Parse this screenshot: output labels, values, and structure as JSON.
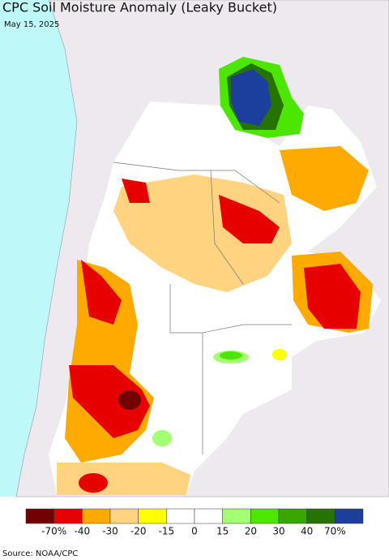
{
  "header": {
    "title": "CPC Soil Moisture Anomaly (Leaky Bucket)",
    "date": "May 15, 2025"
  },
  "legend": {
    "colors": [
      "#730000",
      "#e60000",
      "#ffaa00",
      "#ffd37f",
      "#ffff00",
      "#ffffff",
      "#ffffff",
      "#a3ff73",
      "#4ce600",
      "#38a800",
      "#267300",
      "#1c3f9e"
    ],
    "labels": [
      "-70%",
      "-40",
      "-30",
      "-20",
      "-15",
      "0",
      "15",
      "20",
      "30",
      "40",
      "70%"
    ]
  },
  "source": "Source: NOAA/CPC"
}
